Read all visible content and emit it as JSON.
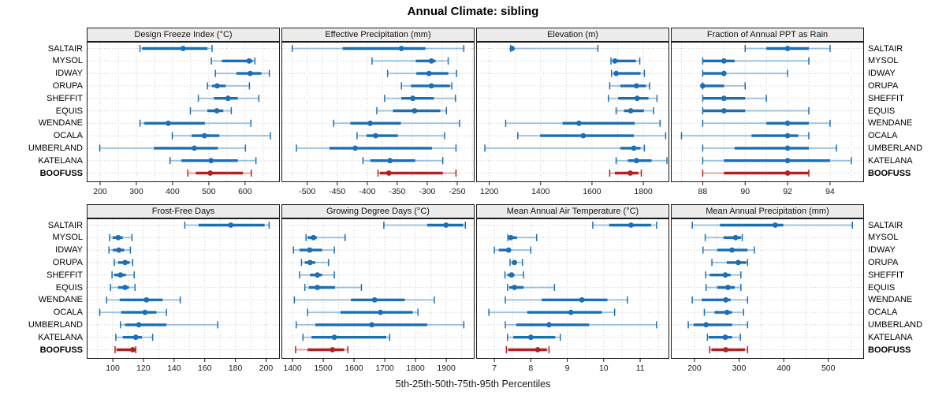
{
  "chart_data": {
    "type": "dotplot-interval",
    "title": "Annual Climate: sibling",
    "xlabel": "5th-25th-50th-75th-95th Percentiles",
    "percentile_labels": [
      "5th",
      "25th",
      "50th",
      "75th",
      "95th"
    ],
    "legend_position": "none",
    "grid": "dotted",
    "sites": [
      "SALTAIR",
      "MYSOL",
      "IDWAY",
      "ORUPA",
      "SHEFFIT",
      "EQUIS",
      "WENDANE",
      "OCALA",
      "UMBERLAND",
      "KATELANA",
      "BOOFUSS"
    ],
    "highlight_site": "BOOFUSS",
    "colors": {
      "series": "#1b6fb5",
      "highlight": "#b22222",
      "grid_line": "#c8c8c8",
      "strip_bg": "#ececec",
      "border": "#1a1a1a",
      "text": "#000000"
    },
    "panels": [
      {
        "title": "Design Freeze Index (°C)",
        "xlim": [
          163,
          696
        ],
        "ticks": [
          200,
          300,
          400,
          500,
          600
        ],
        "grid_step": 50,
        "values": [
          [
            310,
            316,
            429,
            496,
            509
          ],
          [
            507,
            536,
            611,
            621,
            627
          ],
          [
            518,
            576,
            614,
            645,
            667
          ],
          [
            496,
            509,
            523,
            546,
            612
          ],
          [
            471,
            514,
            553,
            580,
            638
          ],
          [
            449,
            496,
            522,
            540,
            562
          ],
          [
            310,
            322,
            388,
            489,
            616
          ],
          [
            399,
            453,
            488,
            529,
            670
          ],
          [
            199,
            348,
            460,
            525,
            601
          ],
          [
            393,
            424,
            506,
            580,
            630
          ],
          [
            442,
            464,
            504,
            594,
            617
          ]
        ]
      },
      {
        "title": "Effective Precipitation (mm)",
        "xlim": [
          -543,
          -221
        ],
        "ticks": [
          -500,
          -450,
          -400,
          -350,
          -300,
          -250
        ],
        "grid_step": 25,
        "values": [
          [
            -525,
            -441,
            -343,
            -303,
            -239
          ],
          [
            -392,
            -319,
            -293,
            -286,
            -265
          ],
          [
            -366,
            -318,
            -297,
            -265,
            -251
          ],
          [
            -343,
            -327,
            -293,
            -262,
            -259
          ],
          [
            -371,
            -343,
            -324,
            -289,
            -253
          ],
          [
            -384,
            -357,
            -321,
            -278,
            -268
          ],
          [
            -456,
            -428,
            -395,
            -344,
            -246
          ],
          [
            -417,
            -401,
            -386,
            -349,
            -271
          ],
          [
            -518,
            -463,
            -420,
            -292,
            -252
          ],
          [
            -407,
            -395,
            -362,
            -320,
            -274
          ],
          [
            -382,
            -379,
            -364,
            -274,
            -252
          ]
        ]
      },
      {
        "title": "Elevation (m)",
        "xlim": [
          1149,
          1901
        ],
        "ticks": [
          1200,
          1400,
          1600,
          1800
        ],
        "grid_step": 100,
        "values": [
          [
            1283,
            1285,
            1289,
            1294,
            1623
          ],
          [
            1674,
            1684,
            1689,
            1771,
            1786
          ],
          [
            1676,
            1690,
            1694,
            1789,
            1804
          ],
          [
            1669,
            1710,
            1773,
            1810,
            1824
          ],
          [
            1664,
            1702,
            1776,
            1820,
            1853
          ],
          [
            1694,
            1725,
            1751,
            1802,
            1840
          ],
          [
            1264,
            1485,
            1549,
            1766,
            1865
          ],
          [
            1311,
            1398,
            1566,
            1763,
            1887
          ],
          [
            1183,
            1710,
            1763,
            1789,
            1804
          ],
          [
            1694,
            1740,
            1773,
            1832,
            1892
          ],
          [
            1669,
            1689,
            1749,
            1781,
            1792
          ]
        ]
      },
      {
        "title": "Fraction of Annual PPT as Rain",
        "xlim": [
          86.5,
          95.6
        ],
        "ticks": [
          88,
          90,
          92,
          94
        ],
        "grid_step": 1,
        "values": [
          [
            90,
            91,
            92,
            93,
            94
          ],
          [
            88,
            88,
            89,
            89.5,
            93
          ],
          [
            88,
            88,
            89,
            89,
            92
          ],
          [
            88,
            88,
            88,
            89,
            90
          ],
          [
            88,
            88,
            89,
            90,
            91
          ],
          [
            88,
            88,
            89,
            90,
            93
          ],
          [
            88,
            91,
            92,
            93,
            94
          ],
          [
            87,
            90.3,
            92,
            92.5,
            93
          ],
          [
            88,
            89.5,
            92,
            93,
            94.3
          ],
          [
            88,
            89,
            92,
            94,
            95
          ],
          [
            88,
            89,
            92,
            93,
            93
          ]
        ]
      },
      {
        "title": "Frost-Free Days",
        "xlim": [
          83,
          209
        ],
        "ticks": [
          100,
          120,
          140,
          160,
          180,
          200
        ],
        "grid_step": 10,
        "values": [
          [
            147,
            156,
            177,
            199,
            202
          ],
          [
            98,
            100,
            103.5,
            106.5,
            112.5
          ],
          [
            97.5,
            100,
            104,
            107.5,
            111.5
          ],
          [
            101,
            103.5,
            108,
            111,
            113
          ],
          [
            99.5,
            101,
            105,
            108.5,
            114
          ],
          [
            98.5,
            103.5,
            108,
            110.5,
            114.5
          ],
          [
            96,
            104.5,
            122,
            132.5,
            144
          ],
          [
            91.5,
            105.5,
            121,
            128.5,
            135
          ],
          [
            105,
            108,
            117,
            135,
            168.5
          ],
          [
            102,
            106.5,
            115,
            119,
            126
          ],
          [
            101.5,
            102.5,
            113,
            114.5,
            115
          ]
        ]
      },
      {
        "title": "Growing Degree Days (°C)",
        "xlim": [
          1364,
          1992
        ],
        "ticks": [
          1400,
          1500,
          1600,
          1700,
          1800,
          1900
        ],
        "grid_step": 50,
        "values": [
          [
            1697,
            1838,
            1899,
            1955,
            1962
          ],
          [
            1444,
            1450,
            1468,
            1479,
            1571
          ],
          [
            1403,
            1423,
            1456,
            1496,
            1536
          ],
          [
            1429,
            1440,
            1457,
            1474,
            1517
          ],
          [
            1423,
            1457,
            1481,
            1496,
            1536
          ],
          [
            1440,
            1453,
            1481,
            1538,
            1624
          ],
          [
            1406,
            1590,
            1667,
            1765,
            1861
          ],
          [
            1449,
            1556,
            1686,
            1791,
            1808
          ],
          [
            1412,
            1474,
            1658,
            1838,
            1957
          ],
          [
            1434,
            1462,
            1536,
            1705,
            1716
          ],
          [
            1410,
            1449,
            1530,
            1568,
            1580
          ]
        ]
      },
      {
        "title": "Mean Annual Air Temperature (°C)",
        "xlim": [
          6.5,
          11.8
        ],
        "ticks": [
          7,
          8,
          9,
          10,
          11
        ],
        "grid_step": 0.5,
        "values": [
          [
            9.7,
            10.15,
            10.75,
            11.3,
            11.45
          ],
          [
            7.37,
            7.4,
            7.45,
            7.62,
            8.16
          ],
          [
            7.0,
            7.12,
            7.39,
            7.42,
            8.0
          ],
          [
            7.43,
            7.48,
            7.55,
            7.62,
            7.77
          ],
          [
            7.29,
            7.36,
            7.47,
            7.55,
            7.8
          ],
          [
            7.36,
            7.41,
            7.55,
            7.8,
            8.65
          ],
          [
            7.3,
            8.3,
            9.4,
            10.1,
            10.65
          ],
          [
            6.85,
            7.9,
            9.1,
            9.95,
            10.3
          ],
          [
            7.3,
            7.6,
            8.5,
            9.6,
            11.45
          ],
          [
            7.36,
            7.52,
            8.0,
            8.67,
            8.81
          ],
          [
            7.33,
            7.38,
            8.19,
            8.44,
            8.5
          ]
        ]
      },
      {
        "title": "Mean Annual Precipitation (mm)",
        "xlim": [
          147,
          580
        ],
        "ticks": [
          200,
          300,
          400,
          500
        ],
        "grid_step": 50,
        "values": [
          [
            195,
            257,
            381,
            399,
            554
          ],
          [
            224,
            265,
            292,
            304,
            307
          ],
          [
            219,
            251,
            284,
            319,
            334
          ],
          [
            239,
            272,
            298,
            316,
            319
          ],
          [
            225,
            234,
            269,
            281,
            304
          ],
          [
            226,
            251,
            275,
            290,
            304
          ],
          [
            195,
            216,
            270,
            281,
            319
          ],
          [
            222,
            245,
            273,
            284,
            310
          ],
          [
            186,
            198,
            226,
            284,
            319
          ],
          [
            229,
            232,
            269,
            284,
            303
          ],
          [
            234,
            238,
            270,
            313,
            319
          ]
        ]
      }
    ]
  }
}
